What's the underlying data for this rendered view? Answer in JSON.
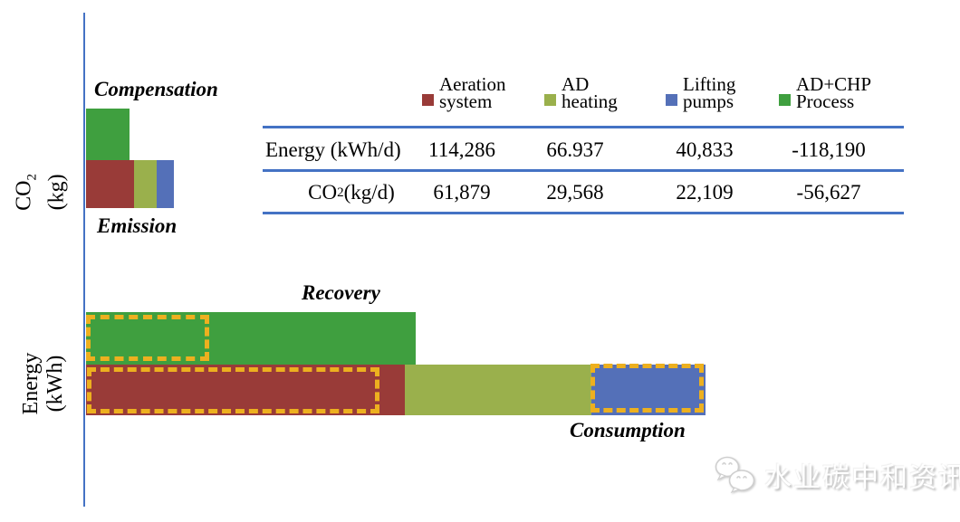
{
  "colors": {
    "aeration_system": "#993b38",
    "ad_heating": "#9ab04c",
    "lifting_pumps": "#5470b8",
    "adchp_process": "#3f9f3f",
    "axis_line": "#4472c4",
    "table_rule": "#4472c4",
    "highlight_box": "#edb01f"
  },
  "axes": {
    "co2": {
      "line1_pre": "CO",
      "line1_sub": "2",
      "line2": "(kg)"
    },
    "energy": {
      "line1": "Energy",
      "line2": "(kWh)"
    }
  },
  "legend": [
    {
      "label_line1": "Aeration",
      "label_line2": "system",
      "color": "#993b38"
    },
    {
      "label_line1": "AD",
      "label_line2": "heating",
      "color": "#9ab04c"
    },
    {
      "label_line1": "Lifting",
      "label_line2": "pumps",
      "color": "#5470b8"
    },
    {
      "label_line1": "AD+CHP",
      "label_line2": "Process",
      "color": "#3f9f3f"
    }
  ],
  "watermark": {
    "text": "水业碳中和资讯"
  },
  "chart_data": [
    {
      "type": "bar",
      "title": "CO2 (kg)",
      "orientation": "horizontal",
      "stacked": true,
      "unit": "kg/d",
      "categories": [
        "Compensation",
        "Emission"
      ],
      "bars": [
        {
          "category": "Compensation",
          "segments": [
            {
              "name": "AD+CHP Process",
              "value": 56627,
              "color": "#3f9f3f"
            }
          ]
        },
        {
          "category": "Emission",
          "segments": [
            {
              "name": "Aeration system",
              "value": 61879,
              "color": "#993b38"
            },
            {
              "name": "AD heating",
              "value": 29568,
              "color": "#9ab04c"
            },
            {
              "name": "Lifting pumps",
              "value": 22109,
              "color": "#5470b8"
            }
          ]
        }
      ]
    },
    {
      "type": "bar",
      "title": "Energy (kWh)",
      "orientation": "horizontal",
      "stacked": true,
      "unit": "kWh/d",
      "categories": [
        "Recovery",
        "Consumption"
      ],
      "bars": [
        {
          "category": "Recovery",
          "segments": [
            {
              "name": "AD+CHP Process",
              "value": 118190,
              "color": "#3f9f3f"
            }
          ]
        },
        {
          "category": "Consumption",
          "segments": [
            {
              "name": "Aeration system",
              "value": 114286,
              "color": "#993b38"
            },
            {
              "name": "AD heating",
              "value": 66937,
              "color": "#9ab04c"
            },
            {
              "name": "Lifting pumps",
              "value": 40833,
              "color": "#5470b8"
            }
          ]
        }
      ]
    },
    {
      "type": "table",
      "columns": [
        "Aeration system",
        "AD heating",
        "Lifting pumps",
        "AD+CHP Process"
      ],
      "rows": [
        {
          "label": "Energy (kWh/d)",
          "values": [
            114286,
            66937,
            40833,
            -118190
          ],
          "display_values": [
            "114,286",
            "66.937",
            "40,833",
            "-118,190"
          ]
        },
        {
          "label": "CO2 (kg/d)",
          "label_pre": "CO",
          "label_sub": "2",
          "label_post": " (kg/d)",
          "values": [
            61879,
            29568,
            22109,
            -56627
          ],
          "display_values": [
            "61,879",
            "29,568",
            "22,109",
            "-56,627"
          ]
        }
      ]
    }
  ]
}
